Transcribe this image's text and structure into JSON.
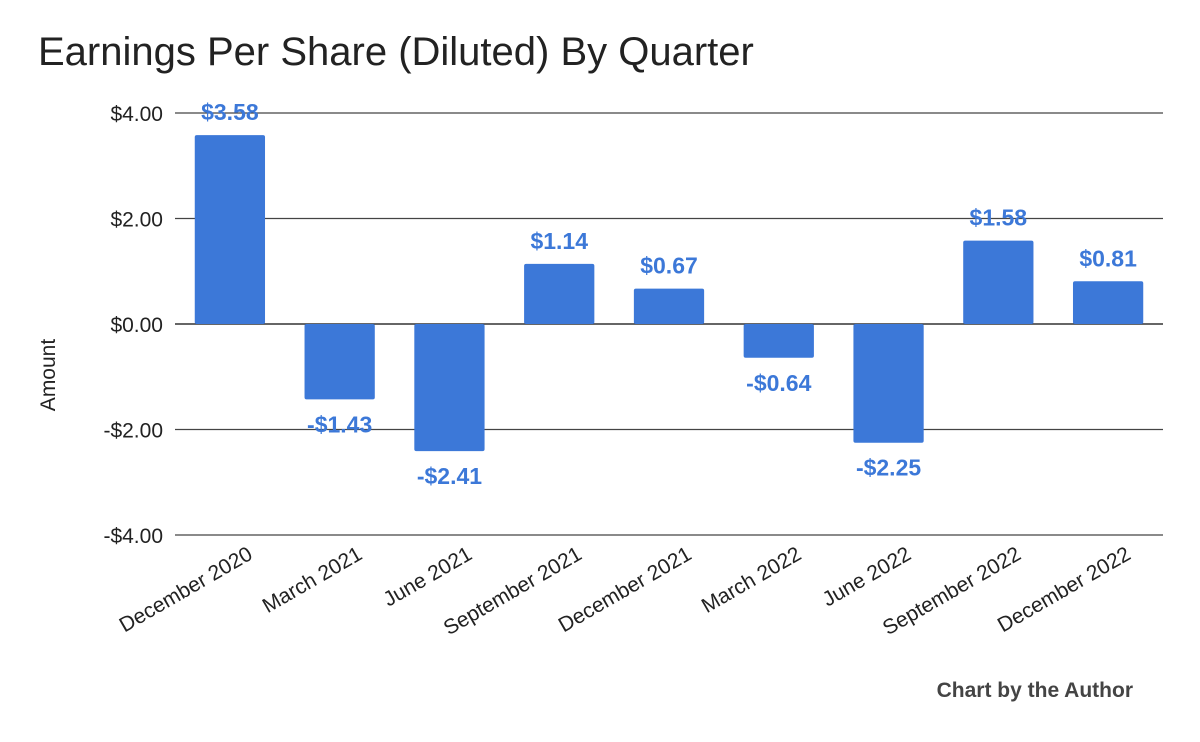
{
  "chart_data": {
    "type": "bar",
    "title": "Earnings Per Share (Diluted) By Quarter",
    "ylabel": "Amount",
    "xlabel": "",
    "categories": [
      "December 2020",
      "March 2021",
      "June 2021",
      "September 2021",
      "December 2021",
      "March 2022",
      "June 2022",
      "September 2022",
      "December 2022"
    ],
    "values": [
      3.58,
      -1.43,
      -2.41,
      1.14,
      0.67,
      -0.64,
      -2.25,
      1.58,
      0.81
    ],
    "data_labels": [
      "$3.58",
      "-$1.43",
      "-$2.41",
      "$1.14",
      "$0.67",
      "-$0.64",
      "-$2.25",
      "$1.58",
      "$0.81"
    ],
    "y_ticks": [
      4,
      2,
      0,
      -2,
      -4
    ],
    "y_tick_labels": [
      "$4.00",
      "$2.00",
      "$0.00",
      "-$2.00",
      "-$4.00"
    ],
    "ylim": [
      -4,
      4
    ],
    "grid": true,
    "legend": "none",
    "bar_color": "#3c78d8",
    "label_color": "#3c78d8"
  },
  "credit": "Chart by the Author"
}
